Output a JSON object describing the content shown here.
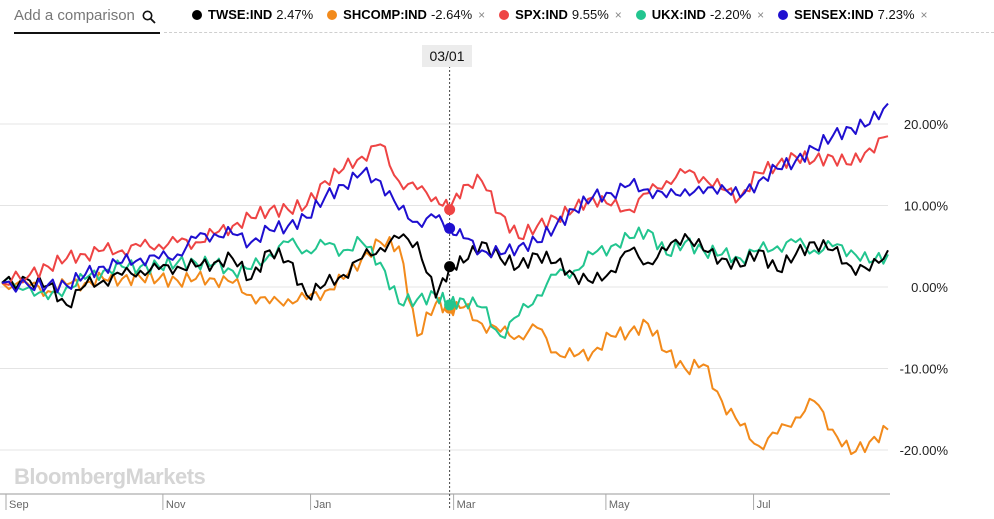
{
  "search": {
    "placeholder": "Add a comparison"
  },
  "legend": [
    {
      "ticker": "TWSE:IND",
      "change": "2.47%",
      "color": "#000000",
      "removable": false
    },
    {
      "ticker": "SHCOMP:IND",
      "change": "-2.64%",
      "color": "#f28a1b",
      "removable": true
    },
    {
      "ticker": "SPX:IND",
      "change": "9.55%",
      "color": "#ee4444",
      "removable": true
    },
    {
      "ticker": "UKX:IND",
      "change": "-2.20%",
      "color": "#22c58f",
      "removable": true
    },
    {
      "ticker": "SENSEX:IND",
      "change": "7.23%",
      "color": "#1f0fd0",
      "removable": true
    }
  ],
  "remove_glyph": "×",
  "hover_date": "03/01",
  "watermark": "BloombergMarkets",
  "chart_data": {
    "type": "line",
    "x_unit": "trading-day index (0 = early Sep, 192 = mid Aug)",
    "ylim": [
      -26,
      32
    ],
    "yticks": [
      {
        "value": 20,
        "label": "20.00%"
      },
      {
        "value": 10,
        "label": "10.00%"
      },
      {
        "value": 0,
        "label": "0.00%"
      },
      {
        "value": -10,
        "label": "-10.00%"
      },
      {
        "value": -20,
        "label": "-20.00%"
      }
    ],
    "xticks": [
      {
        "x": 0,
        "label": "Sep"
      },
      {
        "x": 34,
        "label": "Nov"
      },
      {
        "x": 66,
        "label": "Jan"
      },
      {
        "x": 97,
        "label": "Mar"
      },
      {
        "x": 130,
        "label": "May"
      },
      {
        "x": 162,
        "label": "Jul"
      }
    ],
    "crosshair_x": 97,
    "series": [
      {
        "name": "TWSE:IND",
        "color": "#000000",
        "x": [
          0,
          6,
          10,
          14,
          18,
          22,
          26,
          30,
          34,
          38,
          42,
          46,
          50,
          54,
          58,
          62,
          66,
          70,
          74,
          78,
          82,
          86,
          90,
          94,
          97,
          100,
          104,
          108,
          112,
          116,
          120,
          124,
          128,
          132,
          136,
          140,
          144,
          148,
          152,
          156,
          160,
          164,
          168,
          172,
          176,
          180,
          184,
          188,
          192
        ],
        "y": [
          0.5,
          0.8,
          0.2,
          -2.2,
          0.2,
          0.8,
          1.5,
          2.0,
          2.2,
          2.5,
          2.5,
          3.0,
          3.5,
          1.0,
          4.5,
          3.2,
          -1.0,
          0.3,
          1.5,
          3.5,
          4.8,
          6.0,
          5.5,
          -1.3,
          2.5,
          3.0,
          5.5,
          3.5,
          2.5,
          4.0,
          3.0,
          1.5,
          0.5,
          2.0,
          4.5,
          3.0,
          4.5,
          6.5,
          4.5,
          3.5,
          2.5,
          4.5,
          2.0,
          4.0,
          5.5,
          4.5,
          2.5,
          2.0,
          4.5
        ]
      },
      {
        "name": "SHCOMP:IND",
        "color": "#f28a1b",
        "x": [
          0,
          6,
          10,
          14,
          18,
          22,
          26,
          30,
          34,
          38,
          42,
          46,
          50,
          54,
          58,
          62,
          66,
          70,
          74,
          78,
          82,
          86,
          90,
          94,
          97,
          100,
          104,
          108,
          112,
          116,
          120,
          124,
          128,
          132,
          136,
          140,
          144,
          148,
          152,
          156,
          160,
          164,
          168,
          172,
          176,
          180,
          184,
          188,
          192
        ],
        "y": [
          0.5,
          0.2,
          -0.5,
          0.3,
          0.5,
          1.0,
          1.0,
          1.2,
          1.0,
          0.8,
          1.0,
          1.0,
          0.5,
          -1.0,
          -2.0,
          -1.5,
          -1.5,
          -0.5,
          1.0,
          3.5,
          5.5,
          5.0,
          -6.0,
          -2.0,
          -2.6,
          -2.5,
          -4.5,
          -5.5,
          -6.0,
          -5.0,
          -8.0,
          -8.5,
          -8.0,
          -6.0,
          -5.5,
          -4.5,
          -8.0,
          -10.0,
          -9.5,
          -14.0,
          -17.0,
          -19.5,
          -18.0,
          -16.0,
          -14.0,
          -17.5,
          -20.5,
          -19.0,
          -17.5
        ]
      },
      {
        "name": "SPX:IND",
        "color": "#ee4444",
        "x": [
          0,
          6,
          10,
          14,
          18,
          22,
          26,
          30,
          34,
          38,
          42,
          46,
          50,
          54,
          58,
          62,
          66,
          70,
          74,
          78,
          82,
          86,
          90,
          94,
          97,
          100,
          104,
          108,
          112,
          116,
          120,
          124,
          128,
          132,
          136,
          140,
          144,
          148,
          152,
          156,
          160,
          164,
          168,
          172,
          176,
          180,
          184,
          188,
          192
        ],
        "y": [
          0.5,
          1.5,
          2.5,
          3.5,
          4.0,
          4.5,
          4.5,
          5.0,
          5.2,
          5.5,
          5.5,
          6.5,
          7.5,
          8.5,
          9.5,
          9.5,
          10.0,
          13.0,
          14.5,
          16.0,
          17.5,
          13.0,
          12.0,
          11.0,
          9.5,
          12.5,
          13.0,
          9.0,
          6.0,
          7.5,
          8.5,
          9.5,
          11.0,
          10.0,
          9.5,
          11.5,
          13.0,
          14.0,
          13.5,
          12.0,
          11.0,
          14.0,
          15.0,
          16.0,
          15.5,
          16.0,
          15.0,
          17.0,
          18.5
        ]
      },
      {
        "name": "UKX:IND",
        "color": "#22c58f",
        "x": [
          0,
          6,
          10,
          14,
          18,
          22,
          26,
          30,
          34,
          38,
          42,
          46,
          50,
          54,
          58,
          62,
          66,
          70,
          74,
          78,
          82,
          86,
          90,
          94,
          97,
          100,
          104,
          108,
          112,
          116,
          120,
          124,
          128,
          132,
          136,
          140,
          144,
          148,
          152,
          156,
          160,
          164,
          168,
          172,
          176,
          180,
          184,
          188,
          192
        ],
        "y": [
          0.5,
          0.0,
          -1.5,
          0.0,
          1.0,
          2.0,
          2.5,
          2.5,
          2.5,
          3.0,
          3.0,
          2.8,
          2.0,
          2.2,
          4.0,
          5.5,
          4.5,
          5.2,
          4.5,
          5.5,
          3.0,
          -2.0,
          -1.5,
          -1.0,
          -2.2,
          -1.5,
          -2.5,
          -6.0,
          -3.5,
          -1.0,
          1.5,
          2.0,
          4.0,
          5.0,
          6.0,
          7.0,
          4.0,
          5.5,
          4.5,
          4.0,
          3.5,
          4.5,
          5.0,
          5.5,
          4.5,
          5.0,
          4.5,
          3.0,
          4.0
        ]
      },
      {
        "name": "SENSEX:IND",
        "color": "#1f0fd0",
        "x": [
          0,
          6,
          10,
          14,
          18,
          22,
          26,
          30,
          34,
          38,
          42,
          46,
          50,
          54,
          58,
          62,
          66,
          70,
          74,
          78,
          82,
          86,
          90,
          94,
          97,
          100,
          104,
          108,
          112,
          116,
          120,
          124,
          128,
          132,
          136,
          140,
          144,
          148,
          152,
          156,
          160,
          164,
          168,
          172,
          176,
          180,
          184,
          188,
          192
        ],
        "y": [
          0.5,
          0.0,
          0.3,
          0.2,
          1.5,
          2.5,
          3.0,
          3.5,
          3.5,
          4.0,
          6.0,
          6.5,
          6.5,
          5.5,
          7.0,
          7.5,
          8.5,
          11.0,
          12.5,
          14.0,
          13.0,
          9.5,
          8.0,
          8.5,
          7.2,
          6.0,
          4.5,
          4.0,
          5.0,
          5.5,
          7.5,
          9.5,
          11.0,
          11.5,
          12.5,
          12.0,
          11.0,
          12.0,
          11.5,
          12.5,
          11.0,
          13.0,
          14.5,
          15.5,
          17.0,
          18.5,
          19.5,
          20.0,
          22.5
        ]
      }
    ]
  }
}
